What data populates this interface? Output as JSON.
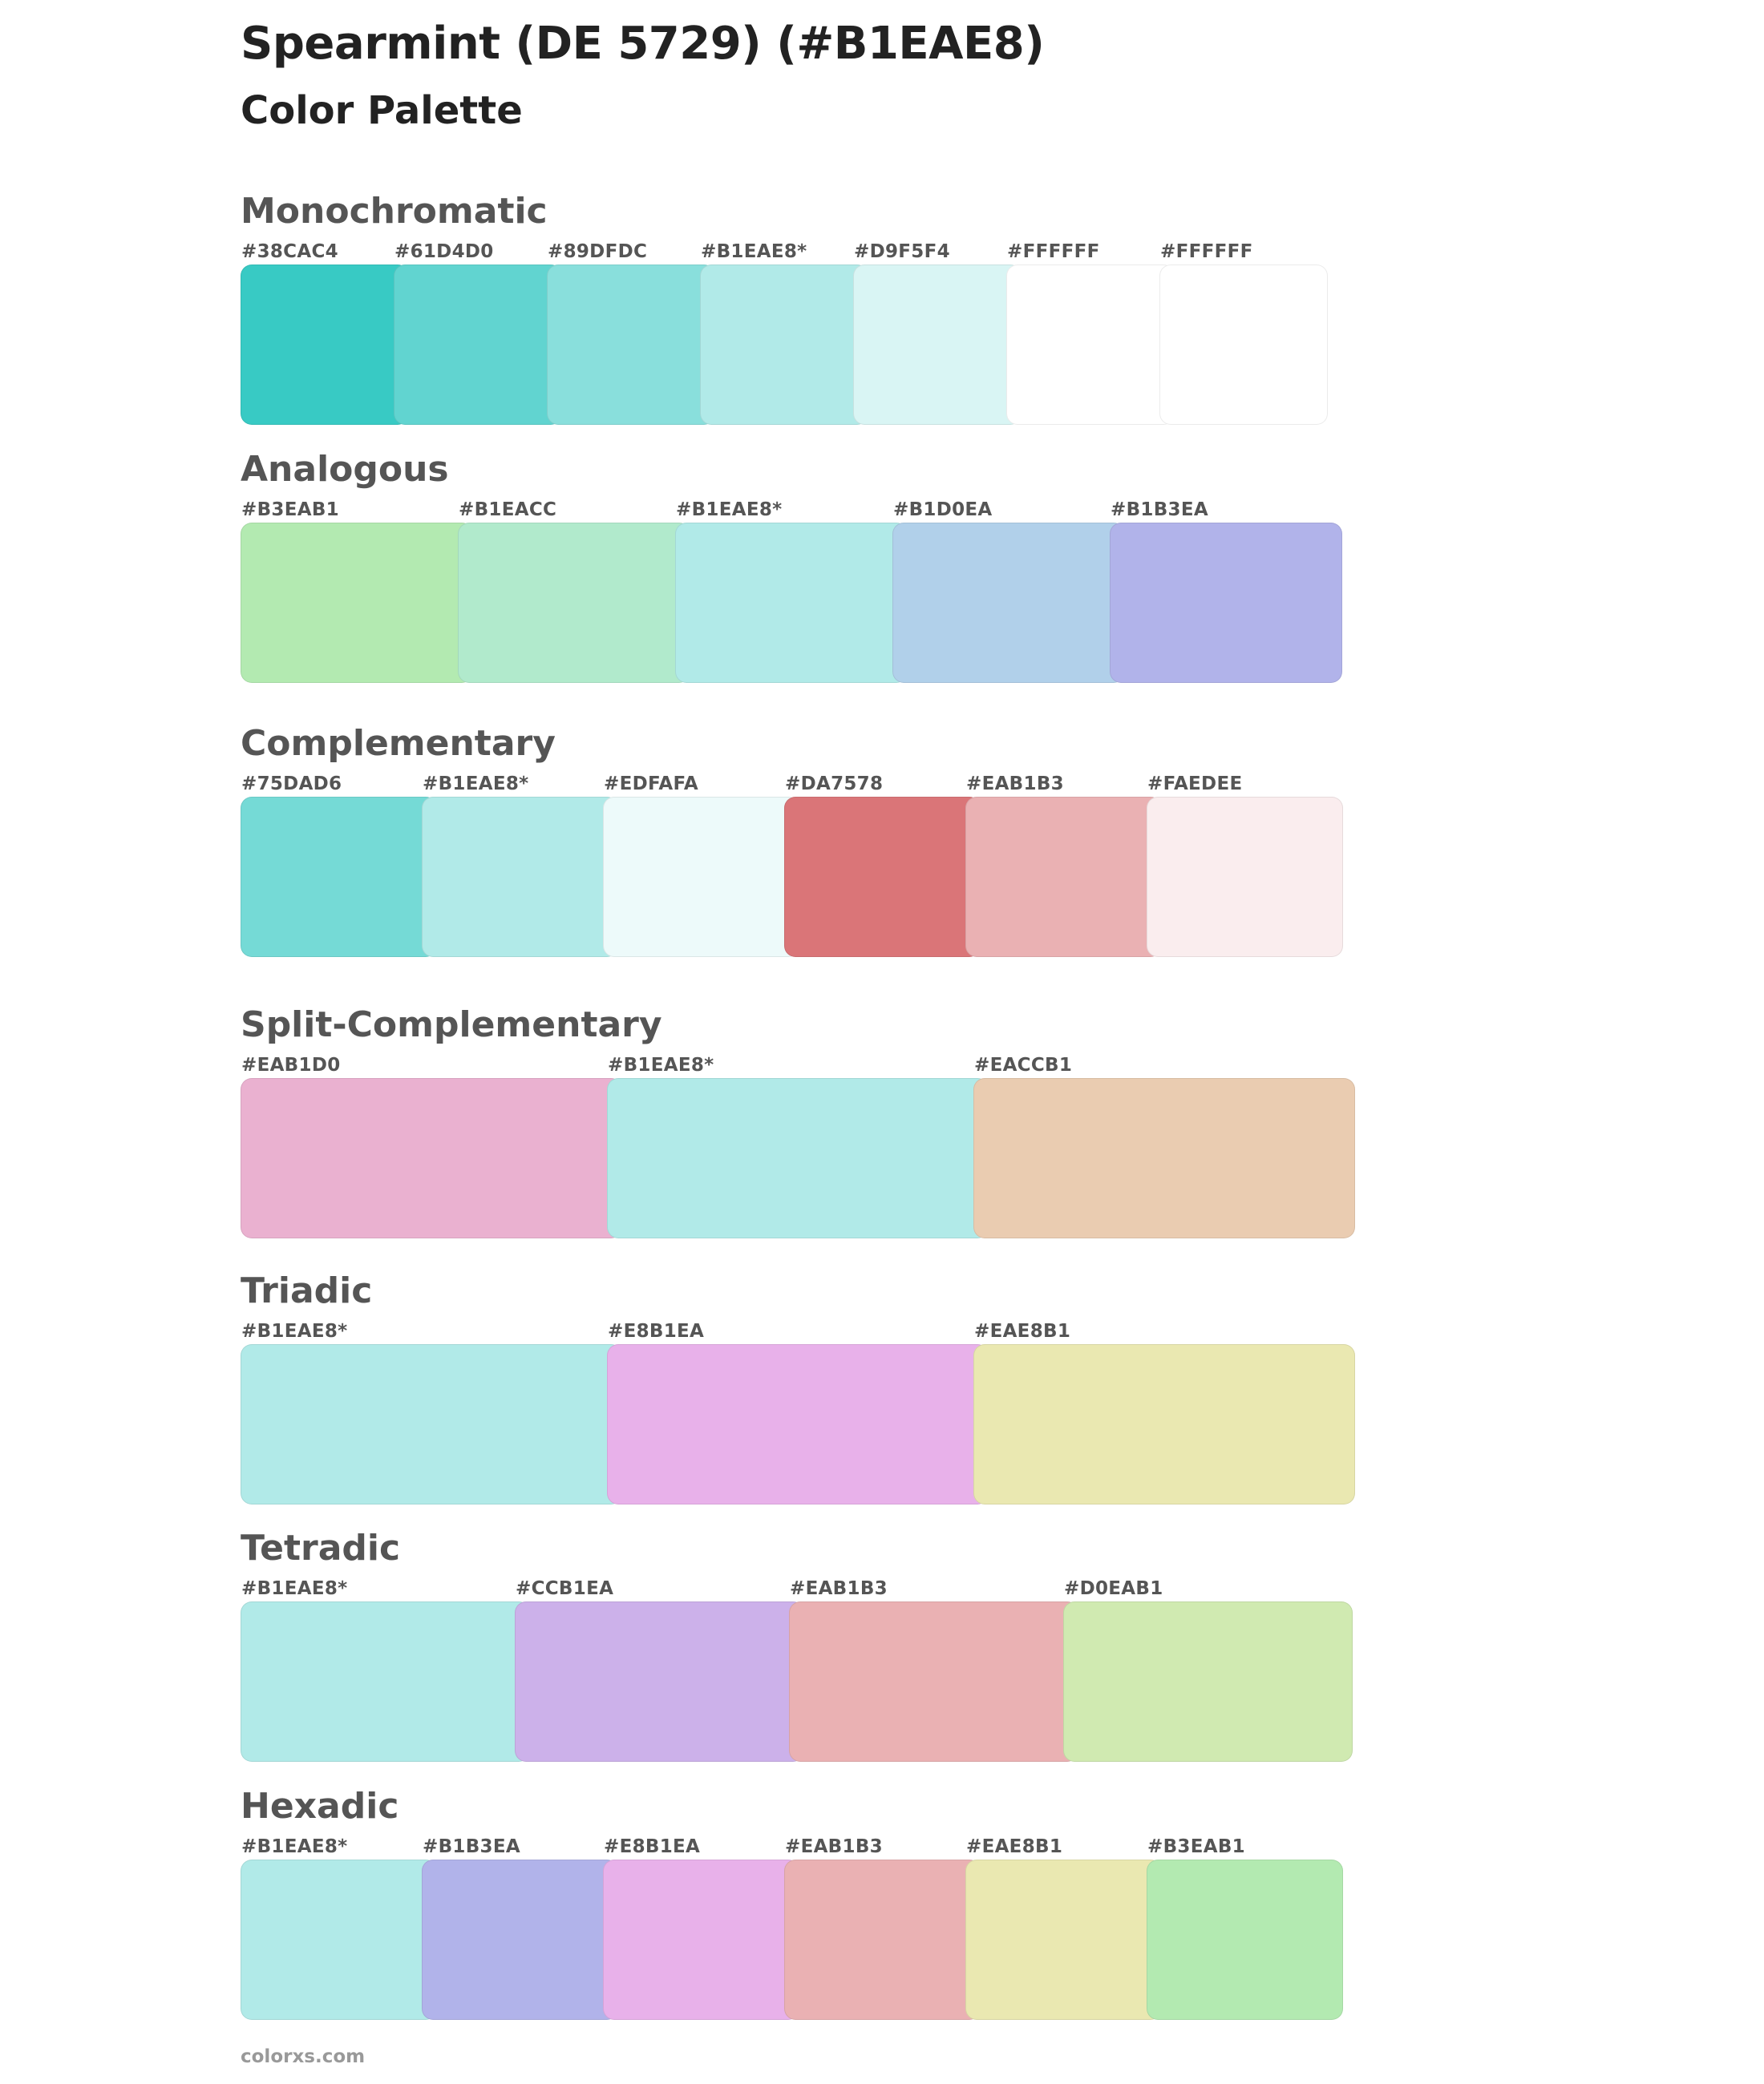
{
  "title": "Spearmint (DE 5729) (#B1EAE8)",
  "subtitle": "Color Palette",
  "footer": "colorxs.com",
  "sections": [
    {
      "name": "Monochromatic",
      "swatches": [
        {
          "label": "#38CAC4",
          "color": "#38CAC4"
        },
        {
          "label": "#61D4D0",
          "color": "#61D4D0"
        },
        {
          "label": "#89DFDC",
          "color": "#89DFDC"
        },
        {
          "label": "#B1EAE8*",
          "color": "#B1EAE8"
        },
        {
          "label": "#D9F5F4",
          "color": "#D9F5F4"
        },
        {
          "label": "#FFFFFF",
          "color": "#FFFFFF"
        },
        {
          "label": "#FFFFFF",
          "color": "#FFFFFF"
        }
      ]
    },
    {
      "name": "Analogous",
      "swatches": [
        {
          "label": "#B3EAB1",
          "color": "#B3EAB1"
        },
        {
          "label": "#B1EACC",
          "color": "#B1EACC"
        },
        {
          "label": "#B1EAE8*",
          "color": "#B1EAE8"
        },
        {
          "label": "#B1D0EA",
          "color": "#B1D0EA"
        },
        {
          "label": "#B1B3EA",
          "color": "#B1B3EA"
        }
      ]
    },
    {
      "name": "Complementary",
      "swatches": [
        {
          "label": "#75DAD6",
          "color": "#75DAD6"
        },
        {
          "label": "#B1EAE8*",
          "color": "#B1EAE8"
        },
        {
          "label": "#EDFAFA",
          "color": "#EDFAFA"
        },
        {
          "label": "#DA7578",
          "color": "#DA7578"
        },
        {
          "label": "#EAB1B3",
          "color": "#EAB1B3"
        },
        {
          "label": "#FAEDEE",
          "color": "#FAEDEE"
        }
      ]
    },
    {
      "name": "Split-Complementary",
      "swatches": [
        {
          "label": "#EAB1D0",
          "color": "#EAB1D0"
        },
        {
          "label": "#B1EAE8*",
          "color": "#B1EAE8"
        },
        {
          "label": "#EACCB1",
          "color": "#EACCB1"
        }
      ]
    },
    {
      "name": "Triadic",
      "swatches": [
        {
          "label": "#B1EAE8*",
          "color": "#B1EAE8"
        },
        {
          "label": "#E8B1EA",
          "color": "#E8B1EA"
        },
        {
          "label": "#EAE8B1",
          "color": "#EAE8B1"
        }
      ]
    },
    {
      "name": "Tetradic",
      "swatches": [
        {
          "label": "#B1EAE8*",
          "color": "#B1EAE8"
        },
        {
          "label": "#CCB1EA",
          "color": "#CCB1EA"
        },
        {
          "label": "#EAB1B3",
          "color": "#EAB1B3"
        },
        {
          "label": "#D0EAB1",
          "color": "#D0EAB1"
        }
      ]
    },
    {
      "name": "Hexadic",
      "swatches": [
        {
          "label": "#B1EAE8*",
          "color": "#B1EAE8"
        },
        {
          "label": "#B1B3EA",
          "color": "#B1B3EA"
        },
        {
          "label": "#E8B1EA",
          "color": "#E8B1EA"
        },
        {
          "label": "#EAB1B3",
          "color": "#EAB1B3"
        },
        {
          "label": "#EAE8B1",
          "color": "#EAE8B1"
        },
        {
          "label": "#B3EAB1",
          "color": "#B3EAB1"
        }
      ]
    }
  ]
}
